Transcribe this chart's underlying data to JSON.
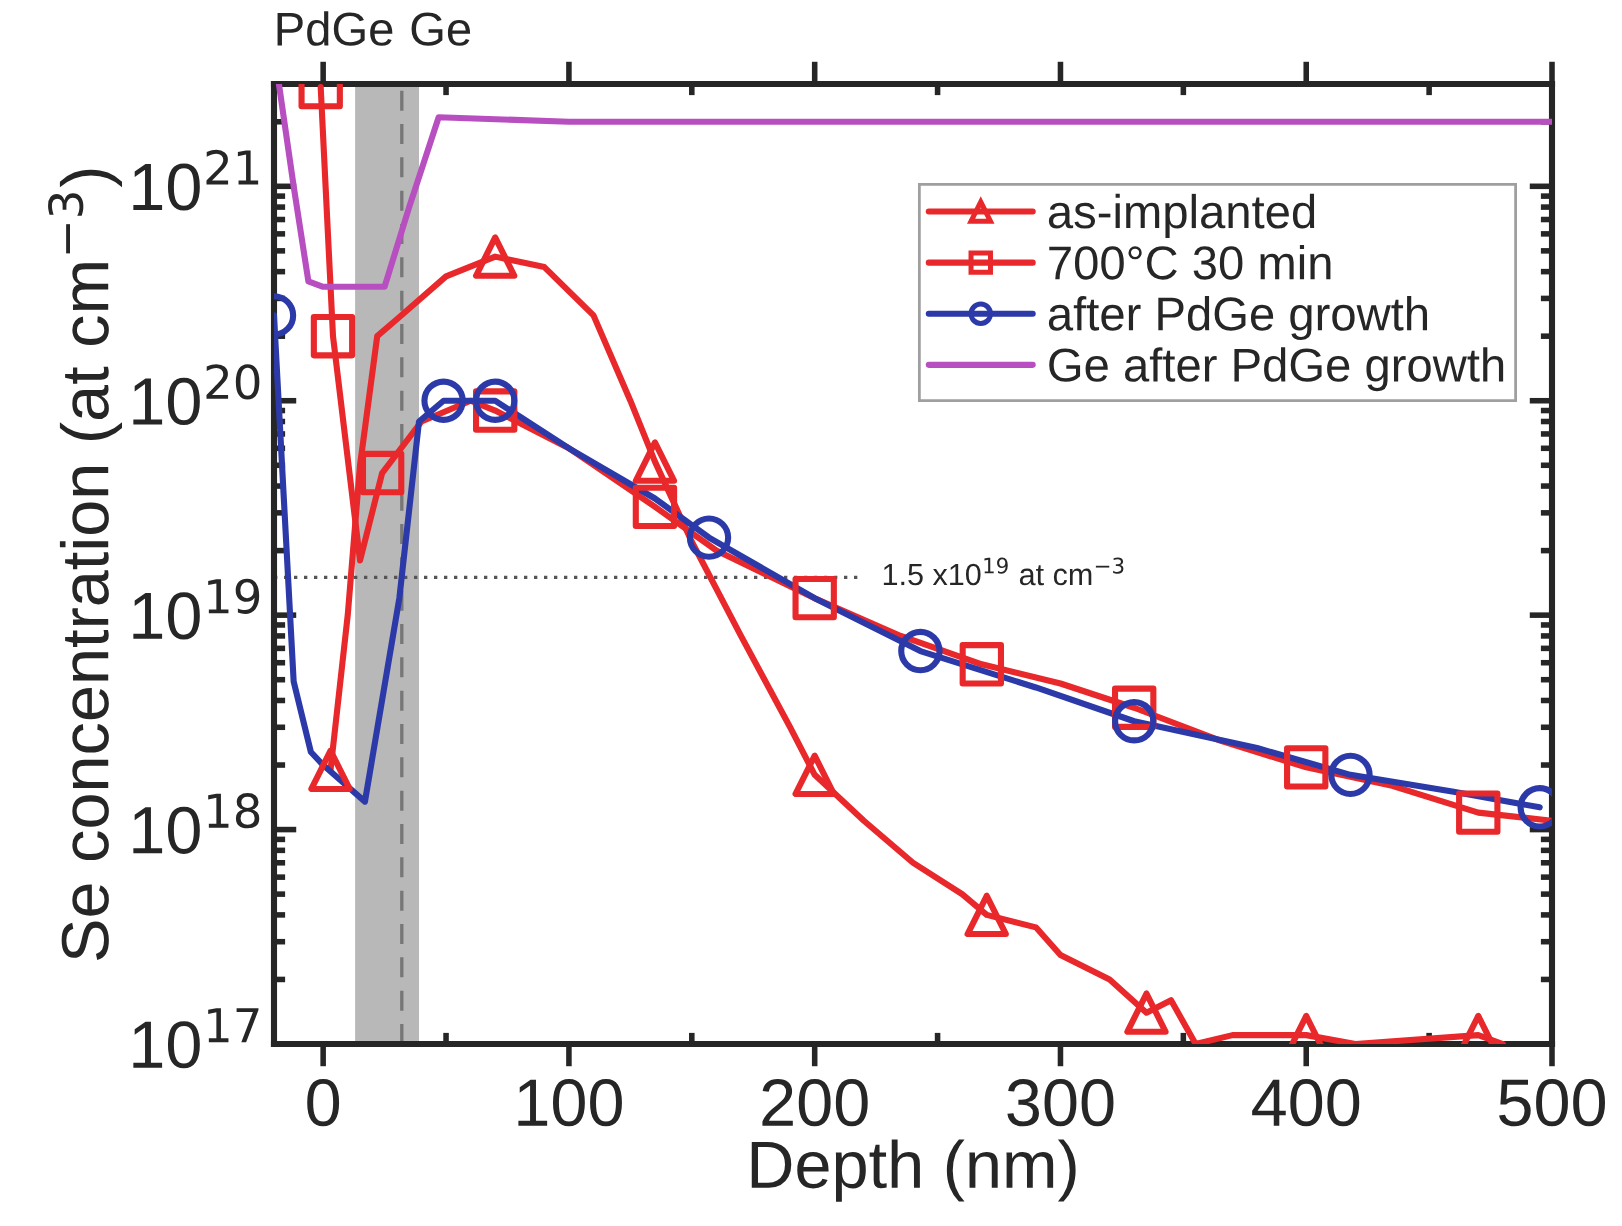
{
  "chart_data": {
    "type": "line",
    "xlabel": "Depth (nm)",
    "ylabel": "Se concentration (at cm$^{−3}$)",
    "log": "y",
    "xlim": [
      -20,
      500
    ],
    "ylim": [
      1e+17,
      3e+21
    ],
    "xticks": [
      0,
      100,
      200,
      300,
      400,
      500
    ],
    "yticks": [
      {
        "value": 1e+17,
        "label": "10$^{17}$"
      },
      {
        "value": 1e+18,
        "label": "10$^{18}$"
      },
      {
        "value": 1e+19,
        "label": "10$^{19}$"
      },
      {
        "value": 1e+20,
        "label": "10$^{20}$"
      },
      {
        "value": 1e+21,
        "label": "10$^{21}$"
      }
    ],
    "grid": false,
    "legend": "top right",
    "series": [
      {
        "name": "as-implanted",
        "color": "#e8282a",
        "x": [
          3,
          10,
          15,
          22,
          30,
          50,
          70,
          90,
          110,
          125,
          135,
          150,
          170,
          190,
          200,
          220,
          240,
          260,
          270,
          290,
          300,
          320,
          335,
          345,
          355,
          370,
          400,
          420,
          470,
          480
        ],
        "values": [
          1.9e+18,
          1e+19,
          5e+19,
          2e+20,
          2.4e+20,
          3.8e+20,
          4.7e+20,
          4.2e+20,
          2.5e+20,
          1e+20,
          5.2e+19,
          2.2e+19,
          8e+18,
          3e+18,
          1.8e+18,
          1.1e+18,
          7e+17,
          5e+17,
          4e+17,
          3.5e+17,
          2.6e+17,
          2e+17,
          1.4e+17,
          1.6e+17,
          1e+17,
          1.1e+17,
          1.1e+17,
          1e+17,
          1.1e+17,
          1e+17
        ]
      },
      {
        "type": "scatter",
        "color": "#e8282a",
        "marker": "triangle",
        "x": [
          3,
          70,
          135,
          200,
          270,
          335,
          400,
          470
        ],
        "values": [
          1.9e+18,
          4.7e+20,
          5.2e+19,
          1.8e+18,
          4e+17,
          1.4e+17,
          1.1e+17,
          1.1e+17
        ]
      },
      {
        "name": "700°C 30 min",
        "color": "#e8282a",
        "x": [
          -1,
          4,
          15,
          24,
          40,
          60,
          70,
          100,
          135,
          160,
          200,
          235,
          268,
          300,
          330,
          365,
          400,
          435,
          470,
          500
        ],
        "values": [
          2.9e+21,
          2e+20,
          1.8e+19,
          4.6e+19,
          8e+19,
          1e+20,
          9e+19,
          6e+19,
          3.2e+19,
          2e+19,
          1.2e+19,
          8e+18,
          5.9e+18,
          4.8e+18,
          3.7e+18,
          2.6e+18,
          1.95e+18,
          1.6e+18,
          1.2e+18,
          1.1e+18
        ]
      },
      {
        "type": "scatter",
        "color": "#e8282a",
        "marker": "square",
        "x": [
          -1,
          4,
          24,
          70,
          135,
          200,
          268,
          330,
          400,
          470
        ],
        "values": [
          2.9e+21,
          2e+20,
          4.6e+19,
          9e+19,
          3.2e+19,
          1.2e+19,
          5.9e+18,
          3.7e+18,
          1.95e+18,
          1.2e+18
        ]
      },
      {
        "name": "after PdGe growth",
        "color": "#2b3aa8",
        "x": [
          -20,
          -12,
          -5,
          0,
          17,
          31,
          39,
          49,
          70,
          100,
          135,
          157,
          200,
          243,
          290,
          330,
          380,
          418,
          460,
          495
        ],
        "values": [
          2.5e+20,
          4.9e+18,
          2.3e+18,
          2e+18,
          1.35e+18,
          1.2e+19,
          8e+19,
          1e+20,
          1e+20,
          6e+19,
          3.5e+19,
          2.3e+19,
          1.2e+19,
          6.8e+18,
          4.6e+18,
          3.2e+18,
          2.4e+18,
          1.8e+18,
          1.5e+18,
          1.27e+18
        ]
      },
      {
        "type": "scatter",
        "color": "#2b3aa8",
        "marker": "circle",
        "x": [
          -20,
          49,
          70,
          157,
          243,
          330,
          418,
          495
        ],
        "values": [
          2.5e+20,
          1e+20,
          1e+20,
          2.3e+19,
          6.8e+18,
          3.2e+18,
          1.8e+18,
          1.27e+18
        ]
      },
      {
        "name": "Ge after PdGe growth",
        "color": "#b84fc0",
        "x": [
          -18,
          -12,
          -6,
          0,
          10,
          25,
          35,
          47,
          100,
          200,
          300,
          400,
          500
        ],
        "values": [
          3e+21,
          1e+21,
          3.6e+20,
          3.4e+20,
          3.4e+20,
          3.4e+20,
          8e+20,
          2.1e+21,
          2e+21,
          2e+21,
          2e+21,
          2e+21,
          2e+21
        ]
      }
    ],
    "ref_lines": [
      {
        "axis": "y",
        "value": 1.5e+19,
        "label": "1.5 x10$^{19}$ at cm$^{−3}$",
        "line_style": "dotted",
        "color": "#555555"
      },
      {
        "axis": "x",
        "value": 32,
        "label": null,
        "line_style": "dashed",
        "color": "#777777"
      }
    ],
    "bands": [
      {
        "axis": "x",
        "from": 13,
        "to": 39,
        "label": null,
        "color": "#b8b8b8"
      }
    ],
    "annotations": [
      "PdGe",
      "Ge"
    ]
  }
}
